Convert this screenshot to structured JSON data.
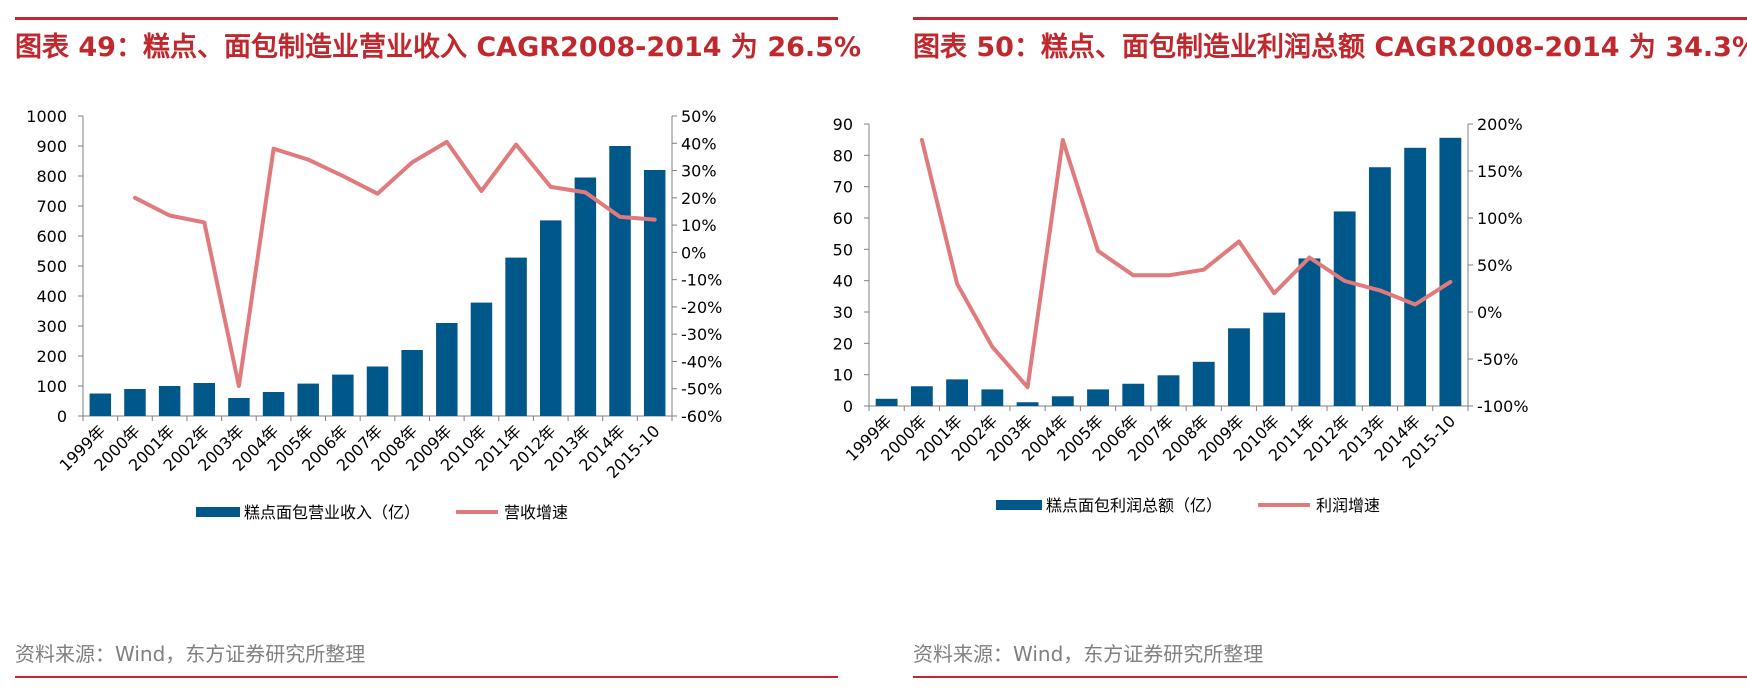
{
  "colors": {
    "bar": "#00578a",
    "line": "#e07a7c",
    "accent": "#c0282d",
    "axis": "#808080"
  },
  "chart_data": [
    {
      "type": "bar",
      "title": "图表 49：糕点、面包制造业营业收入 CAGR2008-2014 为  26.5%",
      "source": "资料来源：Wind，东方证券研究所整理",
      "categories": [
        "1999年",
        "2000年",
        "2001年",
        "2002年",
        "2003年",
        "2004年",
        "2005年",
        "2006年",
        "2007年",
        "2008年",
        "2009年",
        "2010年",
        "2011年",
        "2012年",
        "2013年",
        "2014年",
        "2015-10"
      ],
      "y_left": {
        "ylim": [
          0,
          1000
        ],
        "ticks": [
          "0",
          "100",
          "200",
          "300",
          "400",
          "500",
          "600",
          "700",
          "800",
          "900",
          "1000"
        ]
      },
      "y_right": {
        "ylim": [
          -60,
          50
        ],
        "ticks": [
          "-60%",
          "-50%",
          "-40%",
          "-30%",
          "-20%",
          "-10%",
          "0%",
          "10%",
          "20%",
          "30%",
          "40%",
          "50%"
        ]
      },
      "series": [
        {
          "name": "糕点面包营业收入（亿）",
          "type": "bar",
          "axis": "left",
          "values": [
            75,
            90,
            100,
            110,
            60,
            80,
            108,
            138,
            165,
            220,
            310,
            378,
            528,
            652,
            795,
            900,
            820
          ]
        },
        {
          "name": "营收增速",
          "type": "line",
          "axis": "right",
          "values": [
            null,
            20,
            13.5,
            11,
            -49,
            38,
            34,
            28,
            21.5,
            33,
            40.5,
            22.5,
            39.5,
            24,
            22,
            13,
            12
          ]
        }
      ]
    },
    {
      "type": "bar",
      "title": "图表 50：糕点、面包制造业利润总额 CAGR2008-2014 为 34.3%",
      "source": "资料来源：Wind，东方证券研究所整理",
      "categories": [
        "1999年",
        "2000年",
        "2001年",
        "2002年",
        "2003年",
        "2004年",
        "2005年",
        "2006年",
        "2007年",
        "2008年",
        "2009年",
        "2010年",
        "2011年",
        "2012年",
        "2013年",
        "2014年",
        "2015-10"
      ],
      "y_left": {
        "ylim": [
          0,
          90
        ],
        "ticks": [
          "0",
          "10",
          "20",
          "30",
          "40",
          "50",
          "60",
          "70",
          "80",
          "90"
        ]
      },
      "y_right": {
        "ylim": [
          -100,
          200
        ],
        "ticks": [
          "-100%",
          "-50%",
          "0%",
          "50%",
          "100%",
          "150%",
          "200%"
        ]
      },
      "series": [
        {
          "name": "糕点面包利润总额（亿）",
          "type": "bar",
          "axis": "left",
          "values": [
            2.3,
            6.3,
            8.5,
            5.3,
            1.2,
            3.1,
            5.3,
            7.1,
            9.8,
            14.1,
            24.8,
            29.8,
            47.1,
            62.1,
            76.2,
            82.4,
            85.6
          ]
        },
        {
          "name": "利润增速",
          "type": "line",
          "axis": "right",
          "values": [
            null,
            183,
            30,
            -37,
            -80,
            183,
            65,
            39,
            39,
            45,
            75,
            20,
            58,
            33,
            23,
            8,
            32
          ]
        }
      ]
    }
  ]
}
